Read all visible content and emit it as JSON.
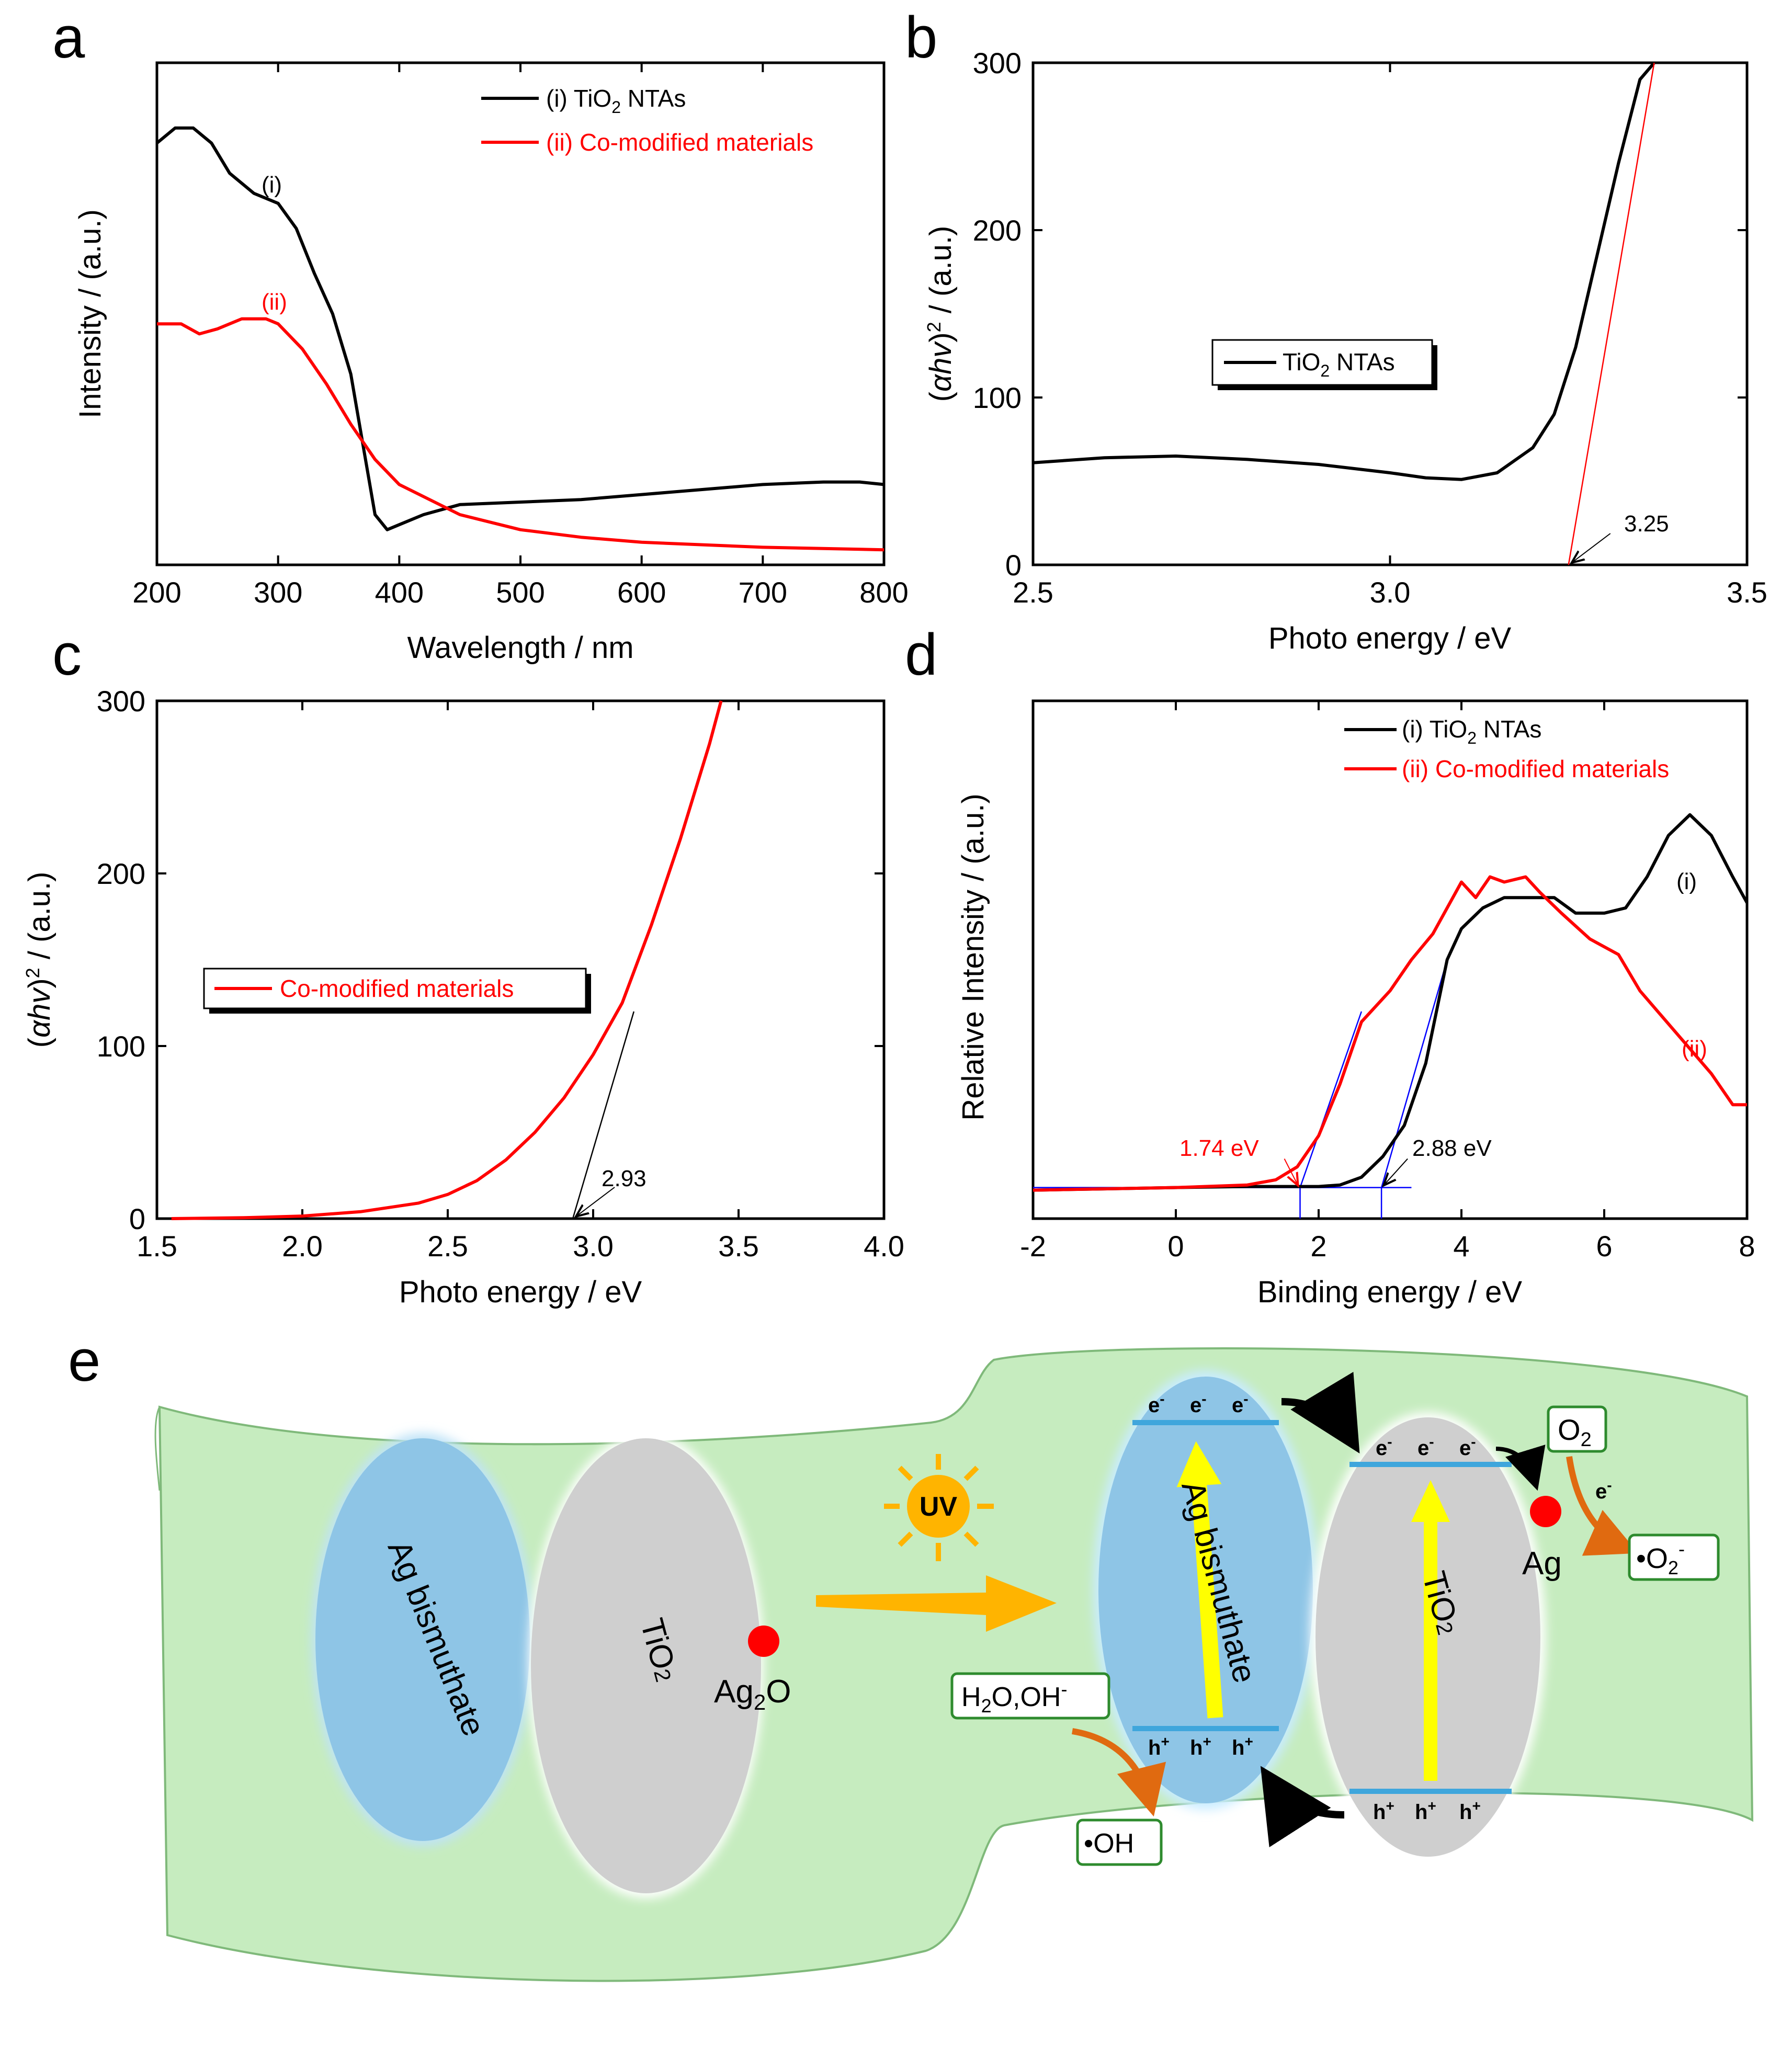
{
  "panels": {
    "a": {
      "letter": "a"
    },
    "b": {
      "letter": "b"
    },
    "c": {
      "letter": "c"
    },
    "d": {
      "letter": "d"
    },
    "e": {
      "letter": "e"
    }
  },
  "chart_data": [
    {
      "id": "a",
      "type": "line",
      "xlabel": "Wavelength / nm",
      "ylabel": "Intensity / (a.u.)",
      "xlim": [
        200,
        800
      ],
      "ylim": [
        0,
        1
      ],
      "xticks": [
        200,
        300,
        400,
        500,
        600,
        700,
        800
      ],
      "xtick_labels": [
        "200",
        "300",
        "400",
        "500",
        "600",
        "700",
        "800"
      ],
      "series": [
        {
          "name": "(i) TiO",
          "legend_sub": "2",
          "legend_suffix": " NTAs",
          "color": "#000000",
          "curve_label": "(i)",
          "x": [
            200,
            215,
            230,
            245,
            260,
            280,
            300,
            315,
            330,
            345,
            360,
            370,
            380,
            390,
            400,
            420,
            450,
            500,
            550,
            600,
            650,
            700,
            750,
            780,
            800
          ],
          "y": [
            0.84,
            0.87,
            0.87,
            0.84,
            0.78,
            0.74,
            0.72,
            0.67,
            0.58,
            0.5,
            0.38,
            0.24,
            0.1,
            0.07,
            0.08,
            0.1,
            0.12,
            0.125,
            0.13,
            0.14,
            0.15,
            0.16,
            0.165,
            0.165,
            0.16
          ]
        },
        {
          "name": "(ii) Co-modified materials",
          "color": "#ff0000",
          "curve_label": "(ii)",
          "x": [
            200,
            220,
            235,
            250,
            270,
            290,
            300,
            320,
            340,
            360,
            380,
            400,
            450,
            500,
            550,
            600,
            700,
            800
          ],
          "y": [
            0.48,
            0.48,
            0.46,
            0.47,
            0.49,
            0.49,
            0.48,
            0.43,
            0.36,
            0.28,
            0.21,
            0.16,
            0.1,
            0.07,
            0.055,
            0.045,
            0.035,
            0.03
          ]
        }
      ]
    },
    {
      "id": "b",
      "type": "line",
      "xlabel": "Photo energy / eV",
      "ylabel_pre": "(",
      "ylabel_italic": "αhv",
      "ylabel_post": ")",
      "ylabel_sup": "2",
      "ylabel_unit": " / (a.u.)",
      "xlim": [
        2.5,
        3.5
      ],
      "ylim": [
        0,
        300
      ],
      "xticks": [
        2.5,
        3.0,
        3.5
      ],
      "xtick_labels": [
        "2.5",
        "3.0",
        "3.5"
      ],
      "yticks": [
        0,
        100,
        200,
        300
      ],
      "ytick_labels": [
        "0",
        "100",
        "200",
        "300"
      ],
      "series": [
        {
          "name": "TiO",
          "legend_sub": "2",
          "legend_suffix": " NTAs",
          "color": "#000000",
          "x": [
            2.5,
            2.6,
            2.7,
            2.8,
            2.9,
            3.0,
            3.05,
            3.1,
            3.15,
            3.2,
            3.23,
            3.26,
            3.29,
            3.32,
            3.35,
            3.37
          ],
          "y": [
            61,
            64,
            65,
            63,
            60,
            55,
            52,
            51,
            55,
            70,
            90,
            130,
            185,
            240,
            290,
            300
          ]
        }
      ],
      "tangent": {
        "x1": 3.25,
        "y1": 0,
        "x2": 3.37,
        "y2": 300,
        "color": "#ff0000"
      },
      "annotation": "3.25",
      "annotation_x": 3.25
    },
    {
      "id": "c",
      "type": "line",
      "xlabel": "Photo energy / eV",
      "ylabel_pre": "(",
      "ylabel_italic": "αhv",
      "ylabel_post": ")",
      "ylabel_sup": "2",
      "ylabel_unit": " / (a.u.)",
      "xlim": [
        1.5,
        4.0
      ],
      "ylim": [
        0,
        300
      ],
      "xticks": [
        1.5,
        2.0,
        2.5,
        3.0,
        3.5,
        4.0
      ],
      "xtick_labels": [
        "1.5",
        "2.0",
        "2.5",
        "3.0",
        "3.5",
        "4.0"
      ],
      "yticks": [
        0,
        100,
        200,
        300
      ],
      "ytick_labels": [
        "0",
        "100",
        "200",
        "300"
      ],
      "series": [
        {
          "name": "Co-modified materials",
          "color": "#ff0000",
          "x": [
            1.55,
            1.8,
            2.0,
            2.2,
            2.4,
            2.5,
            2.6,
            2.7,
            2.8,
            2.9,
            3.0,
            3.1,
            3.2,
            3.3,
            3.4,
            3.44
          ],
          "y": [
            0,
            0.5,
            1.5,
            4,
            9,
            14,
            22,
            34,
            50,
            70,
            95,
            125,
            170,
            220,
            275,
            300
          ]
        }
      ],
      "tangent": {
        "x1": 2.93,
        "y1": 0,
        "x2": 3.14,
        "y2": 120,
        "color": "#000000"
      },
      "annotation": "2.93",
      "annotation_x": 2.93
    },
    {
      "id": "d",
      "type": "line",
      "xlabel": "Binding energy / eV",
      "ylabel": "Relative Intensity / (a.u.)",
      "xlim": [
        -2,
        8
      ],
      "ylim": [
        0,
        1
      ],
      "xticks": [
        -2,
        0,
        2,
        4,
        6,
        8
      ],
      "xtick_labels": [
        "-2",
        "0",
        "2",
        "4",
        "6",
        "8"
      ],
      "series": [
        {
          "name": "(i) TiO",
          "legend_sub": "2",
          "legend_suffix": " NTAs",
          "color": "#000000",
          "curve_label": "(i)",
          "x": [
            -2,
            0,
            1,
            2,
            2.3,
            2.6,
            2.9,
            3.2,
            3.5,
            3.8,
            4.0,
            4.3,
            4.6,
            5.0,
            5.3,
            5.6,
            6.0,
            6.3,
            6.6,
            6.9,
            7.2,
            7.5,
            7.8,
            8.0
          ],
          "y": [
            0.055,
            0.06,
            0.062,
            0.062,
            0.065,
            0.08,
            0.12,
            0.18,
            0.3,
            0.5,
            0.56,
            0.6,
            0.62,
            0.62,
            0.62,
            0.59,
            0.59,
            0.6,
            0.66,
            0.74,
            0.78,
            0.74,
            0.66,
            0.61
          ]
        },
        {
          "name": "(ii) Co-modified materials",
          "color": "#ff0000",
          "curve_label": "(ii)",
          "x": [
            -2,
            0,
            1,
            1.4,
            1.7,
            2.0,
            2.3,
            2.6,
            3.0,
            3.3,
            3.6,
            4.0,
            4.2,
            4.4,
            4.6,
            4.9,
            5.1,
            5.4,
            5.8,
            6.2,
            6.5,
            7.0,
            7.5,
            7.8,
            8.0
          ],
          "y": [
            0.055,
            0.06,
            0.065,
            0.075,
            0.1,
            0.16,
            0.26,
            0.38,
            0.44,
            0.5,
            0.55,
            0.65,
            0.62,
            0.66,
            0.65,
            0.66,
            0.63,
            0.59,
            0.54,
            0.51,
            0.44,
            0.36,
            0.28,
            0.22,
            0.22
          ]
        }
      ],
      "tangents": [
        {
          "x1": 1.74,
          "y1": 0.06,
          "x2": 2.6,
          "y2": 0.4,
          "color": "#0000ff"
        },
        {
          "x1": 2.88,
          "y1": 0.06,
          "x2": 3.8,
          "y2": 0.5,
          "color": "#0000ff"
        }
      ],
      "baseline": {
        "x1": -2,
        "x2": 3.3,
        "y": 0.06,
        "color": "#0000ff"
      },
      "annotations": [
        {
          "text": "1.74 eV",
          "x": 1.74,
          "color": "#ff0000"
        },
        {
          "text": "2.88 eV",
          "x": 2.88,
          "color": "#000000"
        }
      ]
    }
  ],
  "schematic": {
    "left_bismuthate": "Ag bismuthate",
    "left_tio2_base": "TiO",
    "left_tio2_sub": "2",
    "ag2o_base": "Ag",
    "ag2o_sub": "2",
    "ag2o_suffix": "O",
    "uv": "UV",
    "right_bismuthate": "Ag bismuthate",
    "right_tio2_base": "TiO",
    "right_tio2_sub": "2",
    "electron": "e",
    "electron_sup": "-",
    "hole": "h",
    "hole_sup": "+",
    "ag": "Ag",
    "o2_base": "O",
    "o2_sub": "2",
    "o2_radical_base": "•O",
    "o2_radical_sub": "2",
    "o2_radical_sup": "-",
    "h2o_base": "H",
    "h2o_sub": "2",
    "h2o_suffix": "O,OH",
    "h2o_sup": "-",
    "oh_radical": "•OH",
    "colors": {
      "green_fill": "#c6ecbf",
      "blue_fill": "#8ec5e6",
      "gray_fill": "#cfcfcf",
      "red_dot": "#ff0000",
      "uv_orange": "#ffb400",
      "band": "#3fa6dc",
      "arrow_yellow": "#ffff00",
      "orange_arrow": "#e06a10",
      "box_green": "#2e8b2e"
    }
  }
}
